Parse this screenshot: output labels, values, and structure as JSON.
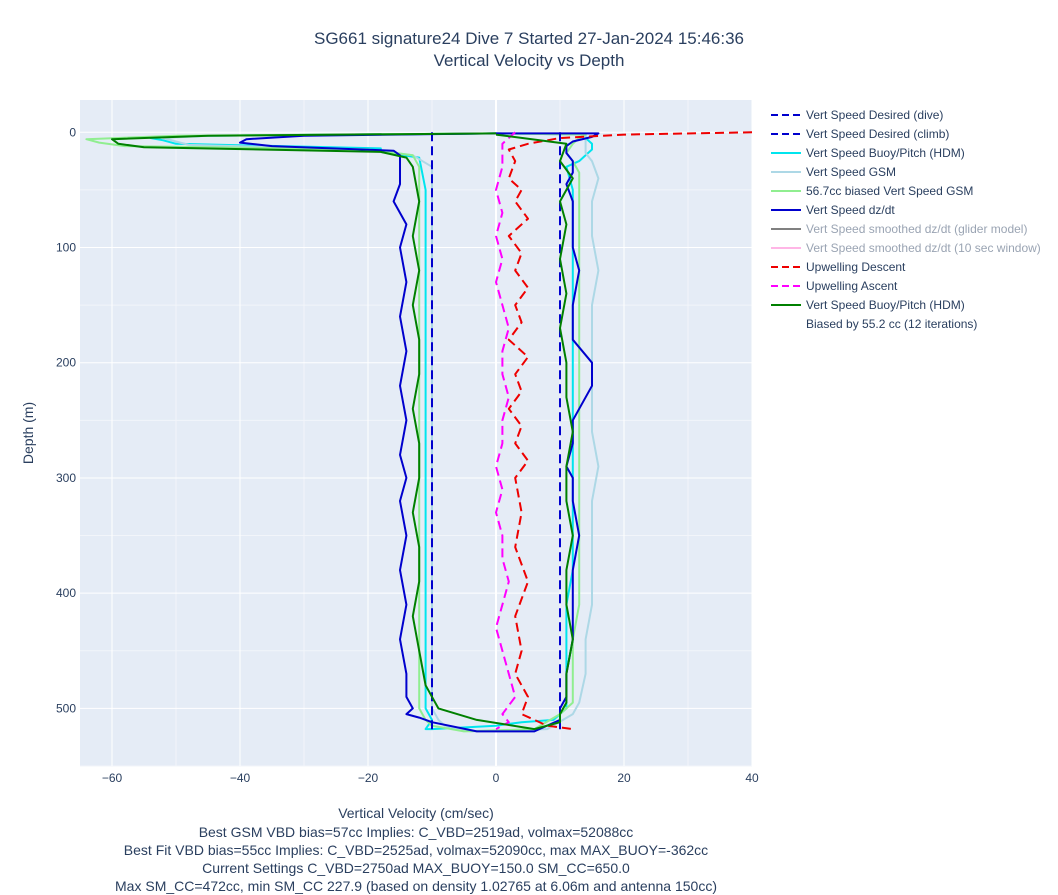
{
  "chart_data": {
    "type": "line",
    "title": "SG661 signature24 Dive 7 Started 27-Jan-2024 15:46:36",
    "subtitle": "Vertical Velocity vs Depth",
    "xlabel": "Vertical Velocity (cm/sec)",
    "ylabel": "Depth (m)",
    "xlim": [
      -65,
      40
    ],
    "ylim": [
      550,
      -28
    ],
    "xticks": [
      -60,
      -40,
      -20,
      0,
      20,
      40
    ],
    "xtick_labels": [
      "−60",
      "−40",
      "−20",
      "0",
      "20",
      "40"
    ],
    "yticks": [
      0,
      100,
      200,
      300,
      400,
      500
    ],
    "ytick_labels": [
      "0",
      "100",
      "200",
      "300",
      "400",
      "500"
    ],
    "grid": true,
    "legend_position": "right",
    "series": [
      {
        "name": "Vert Speed Desired (dive)",
        "color": "#0000cd",
        "dash": "dash",
        "width": 2,
        "x": [
          -10,
          -10
        ],
        "y": [
          0,
          520
        ]
      },
      {
        "name": "Vert Speed Desired (climb)",
        "color": "#0000cd",
        "dash": "dash",
        "width": 2,
        "x": [
          10,
          10
        ],
        "y": [
          0,
          520
        ]
      },
      {
        "name": "Vert Speed Buoy/Pitch (HDM)",
        "color": "#00e5ee",
        "dash": "solid",
        "width": 2,
        "x": [
          0,
          -45,
          -54,
          -52,
          -50,
          -18,
          -18,
          -12,
          -11,
          -11,
          -11,
          -11,
          -11,
          -11,
          -11,
          -11,
          -11,
          -11,
          -10,
          -11,
          -10,
          0,
          4,
          9,
          10,
          11,
          11,
          11,
          11,
          12,
          12,
          12,
          12,
          12,
          12,
          12,
          12,
          12,
          12,
          12,
          12,
          11,
          13,
          14,
          15,
          15,
          14,
          14,
          14,
          0
        ],
        "y": [
          1,
          3,
          5,
          7,
          10,
          14,
          17,
          22,
          50,
          100,
          150,
          200,
          250,
          300,
          350,
          400,
          450,
          500,
          510,
          518,
          518,
          515,
          512,
          510,
          505,
          500,
          470,
          440,
          410,
          380,
          350,
          320,
          290,
          260,
          230,
          200,
          170,
          140,
          110,
          80,
          50,
          30,
          25,
          20,
          15,
          10,
          5,
          3,
          2,
          1
        ]
      },
      {
        "name": "Vert Speed GSM",
        "color": "#add8e6",
        "dash": "solid",
        "width": 2,
        "x": [
          0,
          -45,
          -52,
          -50,
          -48,
          -20,
          -13,
          -10,
          -10,
          -10,
          -10,
          -10,
          -10,
          -10,
          -10,
          -10,
          -10,
          -10,
          -9,
          -8,
          -4,
          8,
          12,
          13,
          14,
          14,
          15,
          15,
          15,
          15,
          16,
          15,
          15,
          15,
          15,
          15,
          16,
          15,
          15,
          16,
          15,
          14,
          14,
          14,
          14,
          0
        ],
        "y": [
          1,
          3,
          5,
          8,
          11,
          15,
          20,
          30,
          70,
          120,
          170,
          220,
          270,
          320,
          370,
          420,
          470,
          500,
          510,
          515,
          520,
          518,
          505,
          495,
          470,
          440,
          410,
          380,
          350,
          320,
          290,
          260,
          230,
          200,
          180,
          150,
          120,
          90,
          60,
          40,
          25,
          18,
          10,
          5,
          2,
          1
        ]
      },
      {
        "name": "56.7cc biased Vert Speed GSM",
        "color": "#90ee90",
        "dash": "solid",
        "width": 2,
        "x": [
          0,
          -50,
          -64,
          -62,
          -58,
          -20,
          -13,
          -12,
          -12,
          -12,
          -12,
          -12,
          -12,
          -12,
          -12,
          -12,
          -12,
          -12,
          -11,
          -10,
          -5,
          6,
          10,
          12,
          12,
          12,
          13,
          13,
          13,
          13,
          13,
          13,
          13,
          13,
          13,
          13,
          13,
          13,
          13,
          13,
          12,
          11,
          12,
          13,
          14,
          0
        ],
        "y": [
          1,
          3,
          6,
          9,
          12,
          15,
          20,
          30,
          70,
          120,
          170,
          220,
          270,
          320,
          370,
          420,
          470,
          500,
          510,
          515,
          520,
          518,
          505,
          495,
          470,
          440,
          410,
          380,
          350,
          320,
          290,
          260,
          230,
          200,
          170,
          140,
          110,
          80,
          50,
          35,
          25,
          18,
          10,
          5,
          2,
          1
        ]
      },
      {
        "name": "Vert Speed dz/dt",
        "color": "#0000cd",
        "dash": "solid",
        "width": 2,
        "x": [
          0,
          -30,
          -39,
          -40,
          -35,
          -16,
          -15,
          -15,
          -15,
          -16,
          -14,
          -15,
          -14,
          -15,
          -14,
          -15,
          -14,
          -15,
          -14,
          -15,
          -14,
          -15,
          -14,
          -15,
          -14,
          -14,
          -13,
          -14,
          -12,
          -10,
          -3,
          6,
          10,
          10,
          11,
          11,
          12,
          12,
          12,
          13,
          12,
          12,
          11,
          12,
          12,
          15,
          15,
          12,
          12,
          13,
          12,
          12,
          12,
          11,
          12,
          12,
          11,
          11,
          12,
          15,
          16,
          0
        ],
        "y": [
          1,
          3,
          6,
          9,
          12,
          16,
          20,
          30,
          45,
          60,
          80,
          100,
          130,
          160,
          190,
          220,
          250,
          280,
          300,
          320,
          350,
          380,
          410,
          440,
          470,
          490,
          500,
          505,
          508,
          512,
          520,
          520,
          510,
          500,
          490,
          470,
          440,
          410,
          380,
          350,
          320,
          300,
          290,
          270,
          250,
          220,
          200,
          180,
          150,
          120,
          100,
          80,
          60,
          45,
          35,
          25,
          18,
          12,
          8,
          4,
          1,
          1
        ]
      },
      {
        "name": "Vert Speed smoothed dz/dt (glider model)",
        "color": "#808080",
        "dash": "solid",
        "width": 2,
        "faded": true,
        "x": [],
        "y": []
      },
      {
        "name": "Vert Speed smoothed dz/dt (10 sec window)",
        "color": "#ffb6e6",
        "dash": "solid",
        "width": 2,
        "faded": true,
        "x": [],
        "y": []
      },
      {
        "name": "Upwelling Descent",
        "color": "#ee0000",
        "dash": "dash",
        "width": 2,
        "x": [
          40,
          20,
          10,
          5,
          2,
          3,
          2,
          4,
          3,
          5,
          2,
          4,
          3,
          5,
          3,
          4,
          2,
          5,
          3,
          4,
          2,
          4,
          3,
          5,
          3,
          4,
          3,
          5,
          3,
          4,
          3,
          5,
          4,
          8,
          12
        ],
        "y": [
          0,
          2,
          5,
          10,
          15,
          25,
          40,
          50,
          60,
          75,
          90,
          105,
          120,
          135,
          150,
          165,
          180,
          195,
          210,
          225,
          240,
          255,
          270,
          285,
          300,
          330,
          360,
          390,
          420,
          450,
          470,
          490,
          505,
          515,
          518
        ]
      },
      {
        "name": "Upwelling Ascent",
        "color": "#ff00ff",
        "dash": "dash",
        "width": 2,
        "x": [
          3,
          1,
          1,
          0,
          1,
          0,
          1,
          0,
          1,
          2,
          1,
          1,
          2,
          1,
          1,
          0,
          1,
          0,
          1,
          1,
          2,
          1,
          0,
          1,
          2,
          3,
          1,
          2,
          0
        ],
        "y": [
          0,
          10,
          30,
          50,
          70,
          90,
          110,
          130,
          150,
          170,
          190,
          210,
          230,
          250,
          270,
          290,
          310,
          330,
          350,
          370,
          390,
          410,
          430,
          450,
          470,
          490,
          505,
          512,
          518
        ]
      },
      {
        "name": "Vert Speed Buoy/Pitch (HDM)",
        "name_line2": "Biased by 55.2 cc (12 iterations)",
        "color": "#008000",
        "dash": "solid",
        "width": 2,
        "x": [
          0,
          -45,
          -60,
          -59,
          -55,
          -18,
          -14,
          -13,
          -12,
          -13,
          -12,
          -13,
          -12,
          -12,
          -13,
          -12,
          -12,
          -13,
          -12,
          -12,
          -13,
          -12,
          -11,
          -9,
          -3,
          6,
          10,
          10,
          11,
          11,
          12,
          11,
          11,
          12,
          11,
          11,
          12,
          11,
          11,
          10,
          11,
          10,
          11,
          10,
          12,
          10,
          11,
          0
        ],
        "y": [
          1,
          3,
          6,
          10,
          13,
          17,
          22,
          30,
          60,
          90,
          120,
          150,
          180,
          210,
          240,
          270,
          300,
          330,
          360,
          390,
          420,
          450,
          480,
          500,
          510,
          518,
          512,
          505,
          495,
          470,
          440,
          410,
          380,
          350,
          320,
          290,
          260,
          230,
          200,
          170,
          140,
          110,
          80,
          60,
          40,
          25,
          10,
          2
        ]
      }
    ],
    "annotations": [
      "Best GSM VBD bias=57cc Implies: C_VBD=2519ad, volmax=52088cc",
      "Best Fit VBD bias=55cc Implies: C_VBD=2525ad, volmax=52090cc, max MAX_BUOY=-362cc",
      "Current Settings C_VBD=2750ad MAX_BUOY=150.0 SM_CC=650.0",
      "Max SM_CC=472cc, min SM_CC 227.9 (based on density 1.02765 at 6.06m and antenna 150cc)"
    ]
  }
}
